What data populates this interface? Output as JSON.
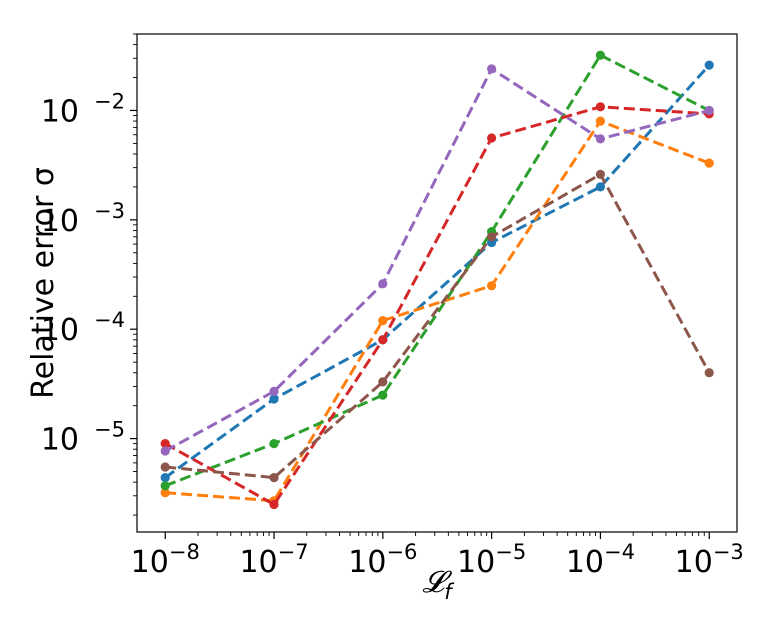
{
  "chart_data": {
    "type": "line",
    "x_scale": "log",
    "y_scale": "log",
    "xlabel": "𝓛",
    "xlabel_subscript": "f",
    "ylabel": "Relative error σ",
    "xlim": [
      5.5e-09,
      0.0018
    ],
    "ylim": [
      1.4e-06,
      0.05
    ],
    "grid": false,
    "line_style": "dashed",
    "x_ticks": [
      {
        "base": "10",
        "exp": "−8",
        "value": 1e-08
      },
      {
        "base": "10",
        "exp": "−7",
        "value": 1e-07
      },
      {
        "base": "10",
        "exp": "−6",
        "value": 1e-06
      },
      {
        "base": "10",
        "exp": "−5",
        "value": 1e-05
      },
      {
        "base": "10",
        "exp": "−4",
        "value": 0.0001
      },
      {
        "base": "10",
        "exp": "−3",
        "value": 0.001
      }
    ],
    "y_ticks": [
      {
        "base": "10",
        "exp": "−5",
        "value": 1e-05
      },
      {
        "base": "10",
        "exp": "−4",
        "value": 0.0001
      },
      {
        "base": "10",
        "exp": "−3",
        "value": 0.001
      },
      {
        "base": "10",
        "exp": "−2",
        "value": 0.01
      }
    ],
    "x": [
      1e-08,
      1e-07,
      1e-06,
      1e-05,
      0.0001,
      0.001
    ],
    "series": [
      {
        "color": "#1f77b4",
        "values": [
          4.4e-06,
          2.3e-05,
          8e-05,
          0.00062,
          0.002,
          0.026
        ]
      },
      {
        "color": "#ff7f0e",
        "values": [
          3.2e-06,
          2.7e-06,
          0.00012,
          0.00025,
          0.008,
          0.0033
        ]
      },
      {
        "color": "#2ca02c",
        "values": [
          3.7e-06,
          9e-06,
          2.5e-05,
          0.00078,
          0.032,
          0.01
        ]
      },
      {
        "color": "#d62728",
        "values": [
          9e-06,
          2.5e-06,
          8e-05,
          0.0056,
          0.0108,
          0.0093
        ]
      },
      {
        "color": "#9467bd",
        "values": [
          7.7e-06,
          2.7e-05,
          0.00026,
          0.024,
          0.0055,
          0.01
        ]
      },
      {
        "color": "#8c564b",
        "values": [
          5.5e-06,
          4.4e-06,
          3.3e-05,
          0.0007,
          0.0026,
          4e-05
        ]
      }
    ]
  }
}
